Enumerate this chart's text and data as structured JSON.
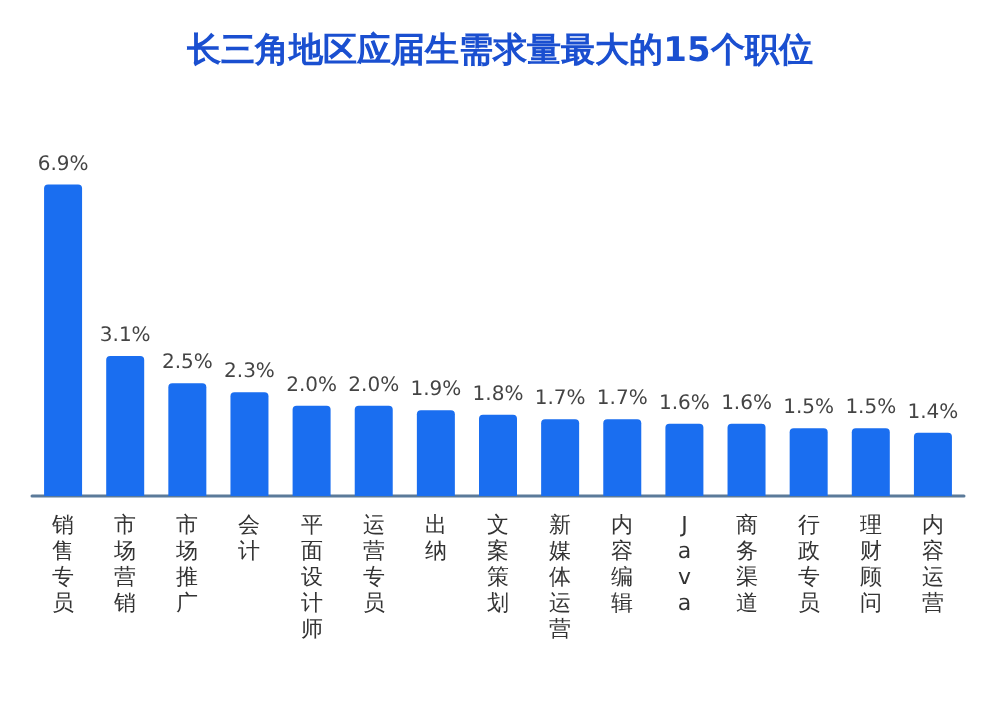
{
  "chart_data": {
    "type": "bar",
    "title": "长三角地区应届生需求量最大的15个职位",
    "categories": [
      "销售专员",
      "市场营销",
      "市场推广",
      "会计",
      "平面设计师",
      "运营专员",
      "出纳",
      "文案策划",
      "新媒体运营",
      "内容编辑",
      "Java",
      "商务渠道",
      "行政专员",
      "理财顾问",
      "内容运营"
    ],
    "values": [
      6.9,
      3.1,
      2.5,
      2.3,
      2.0,
      2.0,
      1.9,
      1.8,
      1.7,
      1.7,
      1.6,
      1.6,
      1.5,
      1.5,
      1.4
    ],
    "value_labels": [
      "6.9%",
      "3.1%",
      "2.5%",
      "2.3%",
      "2.0%",
      "2.0%",
      "1.9%",
      "1.8%",
      "1.7%",
      "1.7%",
      "1.6%",
      "1.6%",
      "1.5%",
      "1.5%",
      "1.4%"
    ],
    "color": "#1a6ef0"
  }
}
